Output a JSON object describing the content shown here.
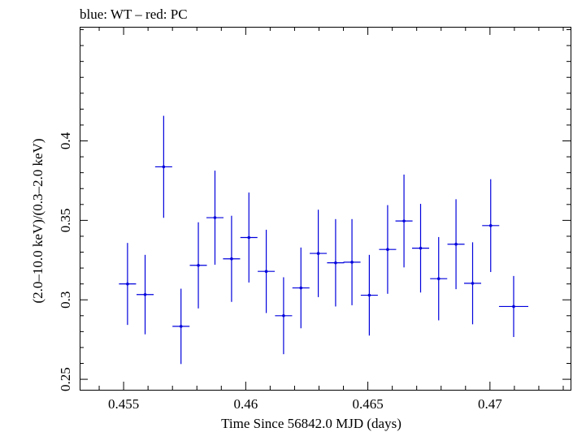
{
  "chart_data": {
    "type": "scatter",
    "title": "blue: WT – red: PC",
    "xlabel": "Time Since 56842.0 MJD (days)",
    "ylabel": "(2.0–10.0 keV)/(0.3–2.0 keV)",
    "xlim": [
      0.4532,
      0.4733
    ],
    "ylim": [
      0.2434,
      0.4718
    ],
    "xticks": [
      0.455,
      0.46,
      0.465,
      0.47
    ],
    "xtick_labels": [
      "0.455",
      "0.46",
      "0.465",
      "0.47"
    ],
    "yticks": [
      0.25,
      0.3,
      0.35,
      0.4
    ],
    "ytick_labels": [
      "0.25",
      "0.3",
      "0.35",
      "0.4"
    ],
    "grid": false,
    "series": [
      {
        "color": "#0000dd",
        "points": [
          {
            "x": 0.45516,
            "xerr": 0.00035,
            "y": 0.31,
            "yerr_lo": 0.0258,
            "yerr_hi": 0.0258
          },
          {
            "x": 0.45588,
            "xerr": 0.00035,
            "y": 0.3033,
            "yerr_lo": 0.025,
            "yerr_hi": 0.025
          },
          {
            "x": 0.45664,
            "xerr": 0.00035,
            "y": 0.3837,
            "yerr_lo": 0.0321,
            "yerr_hi": 0.0321
          },
          {
            "x": 0.45735,
            "xerr": 0.00035,
            "y": 0.2833,
            "yerr_lo": 0.0237,
            "yerr_hi": 0.0237
          },
          {
            "x": 0.45806,
            "xerr": 0.00035,
            "y": 0.3217,
            "yerr_lo": 0.0271,
            "yerr_hi": 0.0271
          },
          {
            "x": 0.45874,
            "xerr": 0.00035,
            "y": 0.3517,
            "yerr_lo": 0.0296,
            "yerr_hi": 0.0296
          },
          {
            "x": 0.45942,
            "xerr": 0.00035,
            "y": 0.3258,
            "yerr_lo": 0.0271,
            "yerr_hi": 0.0271
          },
          {
            "x": 0.46013,
            "xerr": 0.00035,
            "y": 0.3392,
            "yerr_lo": 0.0283,
            "yerr_hi": 0.0283
          },
          {
            "x": 0.46084,
            "xerr": 0.00035,
            "y": 0.3179,
            "yerr_lo": 0.0262,
            "yerr_hi": 0.0262
          },
          {
            "x": 0.46155,
            "xerr": 0.00035,
            "y": 0.29,
            "yerr_lo": 0.0242,
            "yerr_hi": 0.0242
          },
          {
            "x": 0.46226,
            "xerr": 0.00035,
            "y": 0.3075,
            "yerr_lo": 0.0254,
            "yerr_hi": 0.0254
          },
          {
            "x": 0.46297,
            "xerr": 0.00035,
            "y": 0.3292,
            "yerr_lo": 0.0275,
            "yerr_hi": 0.0275
          },
          {
            "x": 0.46368,
            "xerr": 0.00035,
            "y": 0.3233,
            "yerr_lo": 0.0275,
            "yerr_hi": 0.0275
          },
          {
            "x": 0.46435,
            "xerr": 0.00035,
            "y": 0.3237,
            "yerr_lo": 0.0271,
            "yerr_hi": 0.0271
          },
          {
            "x": 0.46506,
            "xerr": 0.00035,
            "y": 0.3029,
            "yerr_lo": 0.0254,
            "yerr_hi": 0.0254
          },
          {
            "x": 0.46581,
            "xerr": 0.00035,
            "y": 0.3317,
            "yerr_lo": 0.0279,
            "yerr_hi": 0.0279
          },
          {
            "x": 0.46648,
            "xerr": 0.00035,
            "y": 0.3496,
            "yerr_lo": 0.0292,
            "yerr_hi": 0.0292
          },
          {
            "x": 0.46716,
            "xerr": 0.00035,
            "y": 0.3325,
            "yerr_lo": 0.0279,
            "yerr_hi": 0.0279
          },
          {
            "x": 0.4679,
            "xerr": 0.00035,
            "y": 0.3133,
            "yerr_lo": 0.0262,
            "yerr_hi": 0.0262
          },
          {
            "x": 0.46861,
            "xerr": 0.00035,
            "y": 0.335,
            "yerr_lo": 0.0283,
            "yerr_hi": 0.0283
          },
          {
            "x": 0.46929,
            "xerr": 0.00035,
            "y": 0.3104,
            "yerr_lo": 0.0258,
            "yerr_hi": 0.0258
          },
          {
            "x": 0.47003,
            "xerr": 0.00035,
            "y": 0.3467,
            "yerr_lo": 0.0292,
            "yerr_hi": 0.0292
          },
          {
            "x": 0.47097,
            "xerr": 0.0006,
            "y": 0.2958,
            "yerr_lo": 0.0192,
            "yerr_hi": 0.0192
          }
        ]
      }
    ]
  }
}
